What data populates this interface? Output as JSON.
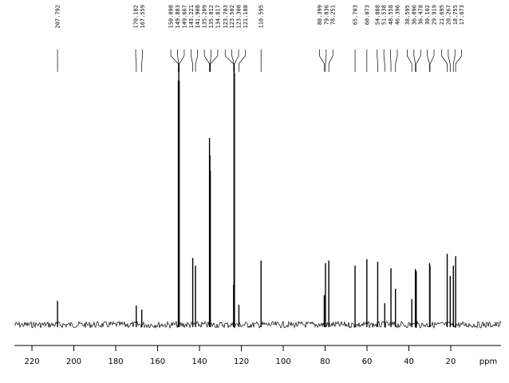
{
  "chart_data": {
    "type": "spectrum",
    "x_label": "ppm",
    "x": [
      207.792,
      170.182,
      167.559,
      150.098,
      149.883,
      149.667,
      143.221,
      141.908,
      135.209,
      135.012,
      134.817,
      123.703,
      123.502,
      {
        "value": 123.3,
        "label": "123.300"
      },
      121.188,
      110.595,
      80.399,
      79.836,
      78.251,
      65.703,
      60.073,
      54.888,
      51.538,
      48.558,
      46.396,
      38.595,
      36.896,
      36.478,
      30.102,
      29.919,
      21.695,
      20.267,
      18.755,
      17.673
    ],
    "values": [
      9.3,
      7.5,
      5.9,
      95,
      100,
      95,
      26,
      23,
      72.7,
      66,
      60,
      15.5,
      100,
      98,
      7.8,
      25,
      11.5,
      24,
      25,
      23,
      25.5,
      24.5,
      8.4,
      22,
      14,
      10,
      21.7,
      20.8,
      24,
      23,
      27.6,
      19,
      23,
      26.7
    ],
    "color": "#000000",
    "xlim": [
      228.4,
      -4
    ],
    "ylim": [
      0,
      100
    ],
    "xticks": [
      220,
      200,
      180,
      160,
      140,
      120,
      100,
      80,
      60,
      40,
      20
    ]
  }
}
